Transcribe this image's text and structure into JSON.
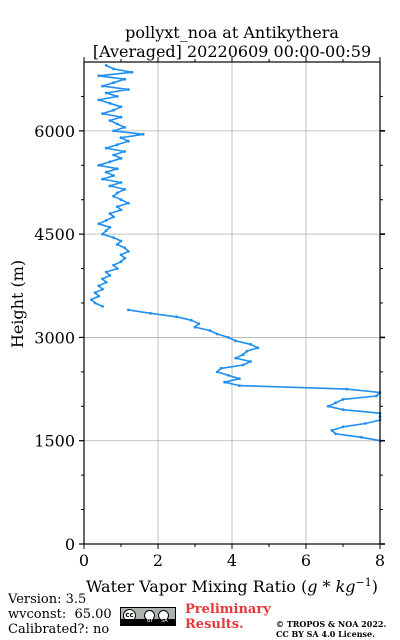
{
  "chart_data": {
    "type": "line",
    "title": "pollyxt_noa at Antikythera",
    "subtitle": "[Averaged] 20220609 00:00-00:59",
    "xlabel": "Water Vapor Mixing Ratio (",
    "xlabel_math": "g * kg",
    "xlabel_sup": "−1",
    "xlabel_close": ")",
    "ylabel": "Height (m)",
    "xlim": [
      0,
      8
    ],
    "ylim": [
      0,
      7000
    ],
    "xticks": [
      0,
      2,
      4,
      6,
      8
    ],
    "yticks": [
      0,
      1500,
      3000,
      4500,
      6000
    ],
    "xtick_labels": [
      "0",
      "2",
      "4",
      "6",
      "8"
    ],
    "ytick_labels": [
      "0",
      "1500",
      "3000",
      "4500",
      "6000"
    ],
    "grid": true,
    "series": [
      {
        "color": "#1f8ff0",
        "height": [
          3450,
          3500,
          3550,
          3600,
          3650,
          3700,
          3750,
          3800,
          3850,
          3900,
          3950,
          4000,
          4050,
          4100,
          4150,
          4200,
          4250,
          4300,
          4350,
          4400,
          4450,
          4500,
          4550,
          4600,
          4650,
          4700,
          4750,
          4800,
          4850,
          4900,
          4950,
          5000,
          5050,
          5100,
          5150,
          5200,
          5250,
          5300,
          5350,
          5400,
          5450,
          5500,
          5550,
          5600,
          5650,
          5700,
          5750,
          5800,
          5850,
          5900,
          5950,
          6000,
          6050,
          6100,
          6150,
          6200,
          6250,
          6300,
          6350,
          6400,
          6450,
          6500,
          6550,
          6600,
          6650,
          6700,
          6750,
          6800,
          6850,
          6900,
          6950
        ],
        "mixing_ratio": [
          0.5,
          0.3,
          0.2,
          0.4,
          0.3,
          0.5,
          0.4,
          0.6,
          0.5,
          0.7,
          0.6,
          0.9,
          0.8,
          1.0,
          1.1,
          1.0,
          1.2,
          1.1,
          0.9,
          1.0,
          0.8,
          0.5,
          0.6,
          0.7,
          0.4,
          0.6,
          0.8,
          0.7,
          1.0,
          0.9,
          1.2,
          1.0,
          0.8,
          0.9,
          1.1,
          0.7,
          1.0,
          0.5,
          0.8,
          0.6,
          0.9,
          0.4,
          0.7,
          1.0,
          0.8,
          1.1,
          0.6,
          0.9,
          1.2,
          1.0,
          1.6,
          0.8,
          1.1,
          0.9,
          0.7,
          1.0,
          0.5,
          0.8,
          1.0,
          0.7,
          0.4,
          0.9,
          0.6,
          1.2,
          0.5,
          0.8,
          1.1,
          0.4,
          1.3,
          0.8,
          0.6
        ]
      },
      {
        "color": "#1f8ff0",
        "height": [
          3400,
          3350,
          3300,
          3250,
          3200,
          3150,
          3100,
          3050,
          3000,
          2950,
          2900,
          2850,
          2800,
          2750,
          2700,
          2650,
          2600,
          2550,
          2500,
          2450,
          2400,
          2350,
          2300,
          2250,
          2200,
          2150,
          2100,
          2050,
          2000,
          1950,
          1900,
          1850,
          1800,
          1750,
          1700,
          1650,
          1600,
          1550,
          1500
        ],
        "mixing_ratio": [
          1.2,
          1.8,
          2.5,
          2.9,
          3.1,
          3.0,
          3.4,
          3.6,
          3.9,
          4.1,
          4.5,
          4.7,
          4.4,
          4.3,
          4.1,
          4.5,
          4.3,
          3.7,
          3.6,
          3.9,
          4.2,
          3.8,
          4.2,
          7.1,
          8.0,
          7.9,
          7.0,
          6.8,
          6.6,
          7.0,
          8.0,
          8.0,
          8.0,
          7.6,
          7.0,
          6.7,
          6.8,
          7.5,
          8.0
        ]
      }
    ]
  },
  "footer": {
    "version": "Version: 3.5",
    "wvconst": "wvconst:  65.00",
    "calibrated": "Calibrated?: no",
    "preliminary_line1": "Preliminary",
    "preliminary_line2": "Results.",
    "copyright_line1": "© TROPOS & NOA 2022.",
    "copyright_line2": "CC BY SA 4.0 License.",
    "license_badge": {
      "cc": "cc",
      "by": "BY",
      "sa": "SA"
    }
  }
}
